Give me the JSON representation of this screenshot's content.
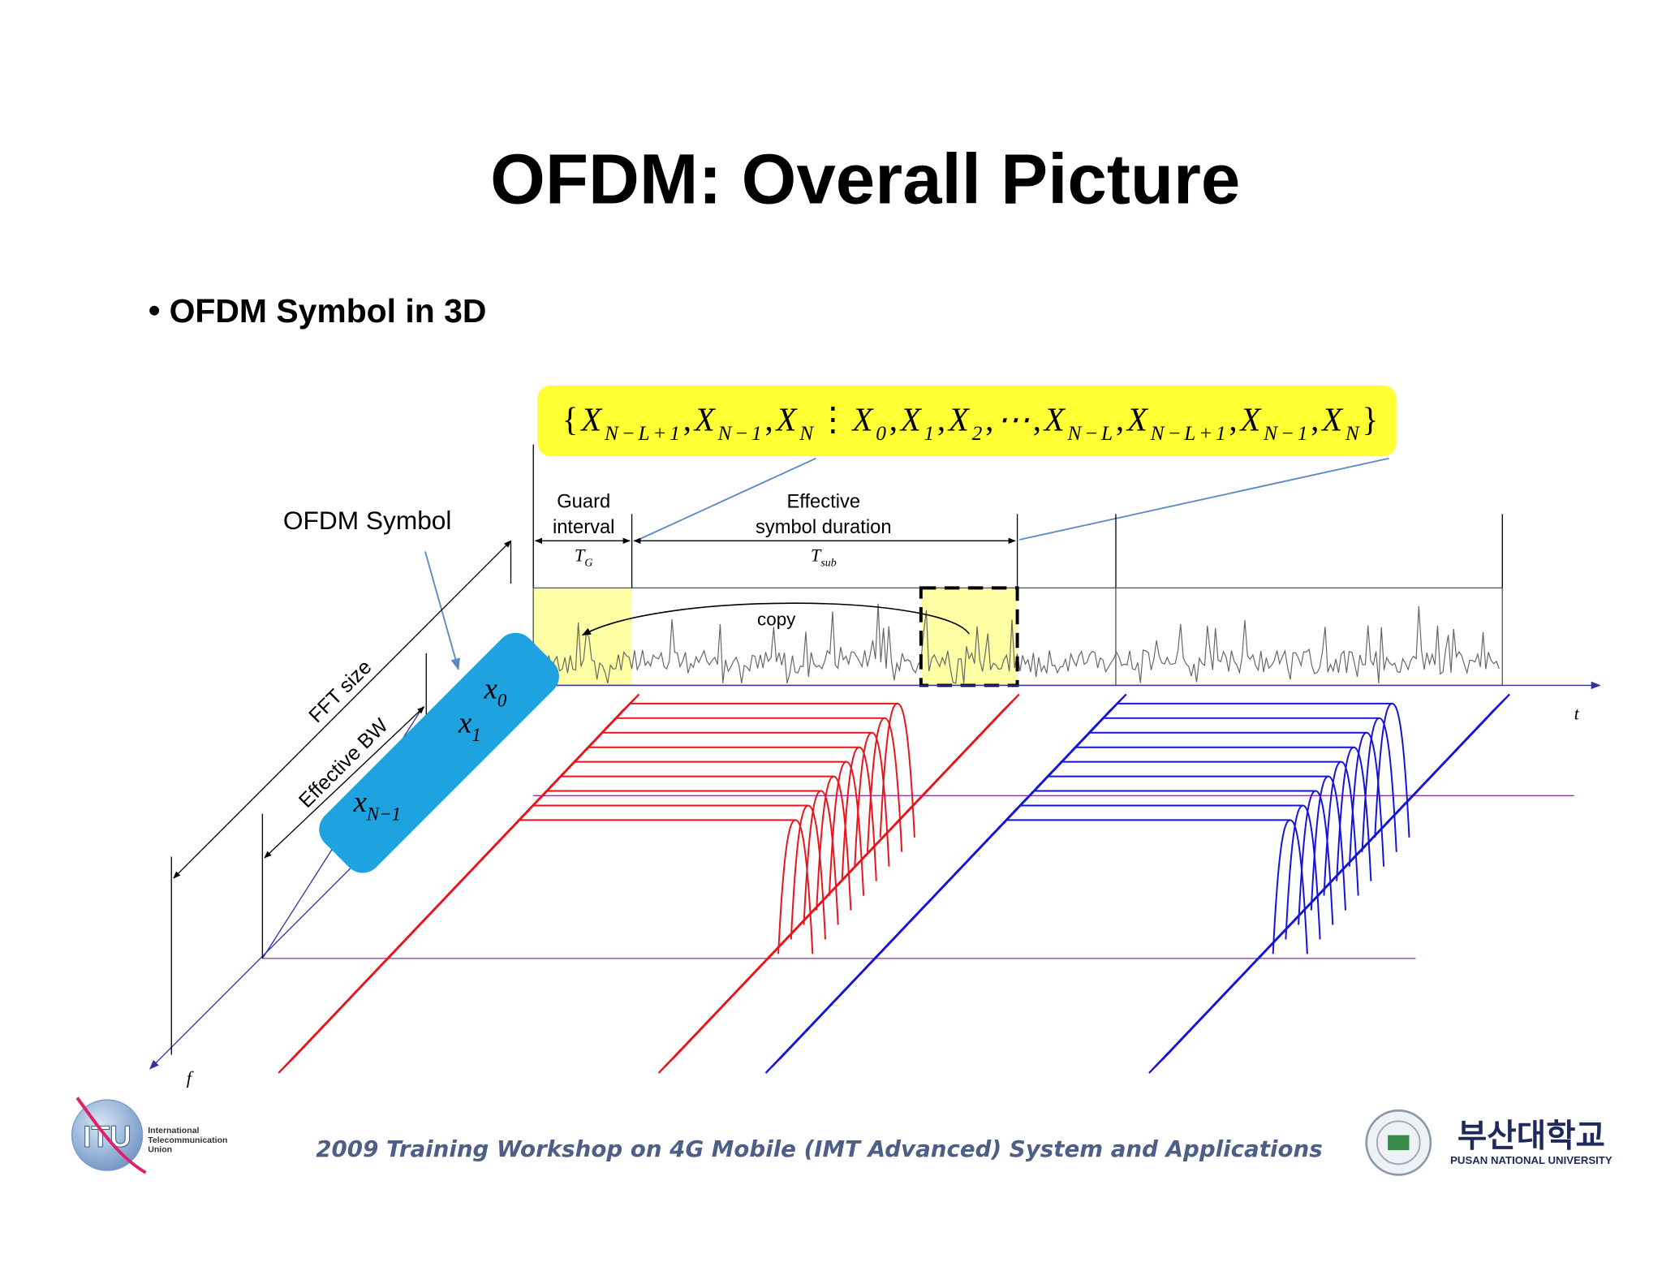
{
  "title": "OFDM: Overall Picture",
  "bullet": "OFDM Symbol in 3D",
  "formula": {
    "open": "{",
    "close": "}",
    "delimiter": ",",
    "separator": "⋮",
    "prefix": [
      {
        "base": "X",
        "sub": "N−L+1"
      },
      {
        "base": "X",
        "sub": "N−1"
      },
      {
        "base": "X",
        "sub": "N"
      }
    ],
    "body": [
      {
        "base": "X",
        "sub": "0"
      },
      {
        "base": "X",
        "sub": "1"
      },
      {
        "base": "X",
        "sub": "2"
      },
      {
        "base": "⋯"
      },
      {
        "base": "X",
        "sub": "N−L"
      },
      {
        "base": "X",
        "sub": "N−L+1"
      },
      {
        "base": "X",
        "sub": "N−1"
      },
      {
        "base": "X",
        "sub": "N"
      }
    ]
  },
  "labels": {
    "ofdm_symbol": "OFDM Symbol",
    "guard": [
      "Guard",
      "interval"
    ],
    "tg": {
      "base": "T",
      "sub": "G"
    },
    "effective": [
      "Effective",
      "symbol duration"
    ],
    "tsub": {
      "base": "T",
      "sub": "sub"
    },
    "copy": "copy",
    "fft_size": "FFT size",
    "effective_bw": "Effective BW",
    "t_axis": "t",
    "f_axis": "f"
  },
  "subcarriers": [
    {
      "base": "x",
      "sub": "0"
    },
    {
      "base": "x",
      "sub": "1"
    },
    {
      "base": "x",
      "sub": "N−1"
    }
  ],
  "footer": {
    "workshop": "2009 Training Workshop on 4G Mobile (IMT Advanced) System and Applications",
    "itu_logo": "ITU",
    "itu_name": [
      "International",
      "Telecommunication",
      "Union"
    ],
    "university_korean": "부산대학교",
    "university_english": "PUSAN NATIONAL UNIVERSITY"
  }
}
